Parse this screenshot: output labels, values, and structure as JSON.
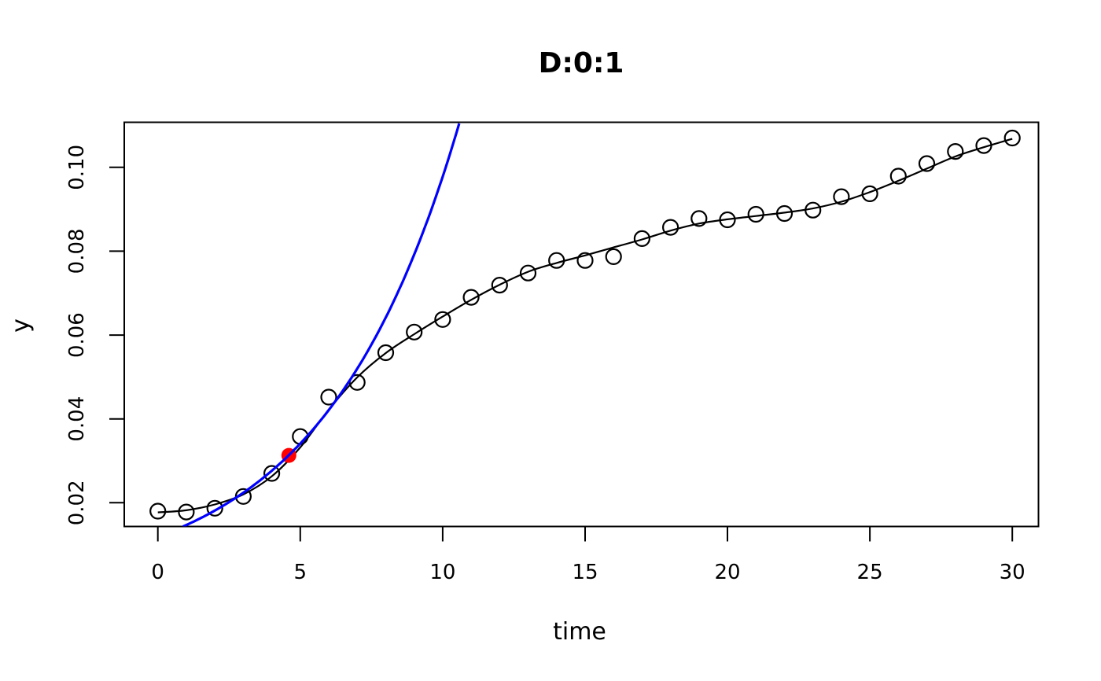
{
  "chart_data": {
    "type": "scatter",
    "title": "D:0:1",
    "xlabel": "time",
    "ylabel": "y",
    "grid": false,
    "legend": "none",
    "xlim": [
      -1.18,
      30.92
    ],
    "ylim": [
      0.01434,
      0.11075
    ],
    "x_ticks": [
      0,
      5,
      10,
      15,
      20,
      25,
      30
    ],
    "x_tick_labels": [
      "0",
      "5",
      "10",
      "15",
      "20",
      "25",
      "30"
    ],
    "y_ticks": [
      0.02,
      0.04,
      0.06,
      0.08,
      0.1
    ],
    "y_tick_labels": [
      "0.02",
      "0.04",
      "0.06",
      "0.08",
      "0.10"
    ],
    "colors": {
      "points": "#000000",
      "fit_line": "#000000",
      "exp_curve": "#0000FF",
      "highlight": "#FF0000"
    },
    "series": [
      {
        "name": "observations",
        "type": "points",
        "marker": "open-circle",
        "color": "#000000",
        "x": [
          0,
          1,
          2,
          3,
          4,
          5,
          6,
          7,
          8,
          9,
          10,
          11,
          12,
          13,
          14,
          15,
          16,
          17,
          18,
          19,
          20,
          21,
          22,
          23,
          24,
          25,
          26,
          27,
          28,
          29,
          30
        ],
        "y": [
          0.018,
          0.0178,
          0.0187,
          0.0215,
          0.027,
          0.0358,
          0.0452,
          0.0487,
          0.0558,
          0.0607,
          0.0637,
          0.069,
          0.0719,
          0.0748,
          0.0778,
          0.0778,
          0.0787,
          0.083,
          0.0857,
          0.0878,
          0.0875,
          0.0888,
          0.089,
          0.0898,
          0.093,
          0.0937,
          0.0979,
          0.1009,
          0.1038,
          0.1052,
          0.107
        ]
      },
      {
        "name": "fitted-curve",
        "type": "line",
        "color": "#000000",
        "x": [
          0,
          1,
          2,
          3,
          4,
          5,
          6,
          7,
          8,
          9,
          10,
          11,
          12,
          13,
          14,
          15,
          16,
          17,
          18,
          19,
          20,
          21,
          22,
          23,
          24,
          25,
          26,
          27,
          28,
          29,
          30
        ],
        "y": [
          0.0177,
          0.0182,
          0.0196,
          0.022,
          0.0263,
          0.0332,
          0.0422,
          0.0499,
          0.0557,
          0.0602,
          0.0644,
          0.0684,
          0.072,
          0.0751,
          0.0772,
          0.079,
          0.0809,
          0.0828,
          0.0849,
          0.0866,
          0.0876,
          0.0884,
          0.0892,
          0.0902,
          0.0918,
          0.0941,
          0.0968,
          0.0997,
          0.1026,
          0.1048,
          0.1068
        ]
      },
      {
        "name": "exponential-curve",
        "type": "exp-line",
        "color": "#0000FF",
        "model": {
          "form": "y = a * exp(b * t)",
          "a": 0.0119,
          "b": 0.2106
        },
        "t_range": [
          0.88,
          10.62
        ]
      },
      {
        "name": "highlight-point",
        "type": "point",
        "marker": "filled-circle",
        "color": "#FF0000",
        "x": [
          4.6
        ],
        "y": [
          0.0313
        ]
      }
    ]
  }
}
